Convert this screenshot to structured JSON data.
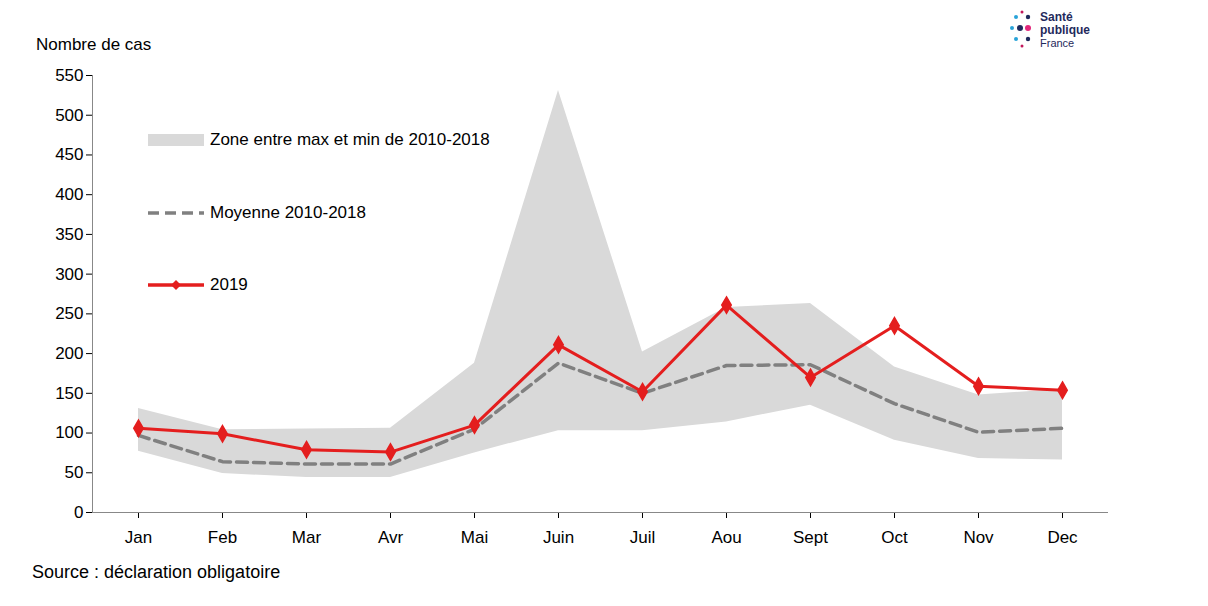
{
  "chart_data": {
    "type": "line",
    "y_label": "Nombre de cas",
    "caption": "Source : déclaration obligatoire",
    "logo": [
      "Santé",
      "publique",
      "France"
    ],
    "categories": [
      "Jan",
      "Feb",
      "Mar",
      "Avr",
      "Mai",
      "Juin",
      "Juil",
      "Aou",
      "Sept",
      "Oct",
      "Nov",
      "Dec"
    ],
    "series": [
      {
        "name": "Zone entre max et min de 2010-2018",
        "type": "area",
        "color": "#d9d9d9",
        "min": [
          77,
          49,
          44,
          44,
          75,
          103,
          103,
          114,
          135,
          91,
          68,
          66
        ],
        "max": [
          131,
          104,
          105,
          106,
          188,
          531,
          202,
          258,
          263,
          183,
          148,
          155
        ]
      },
      {
        "name": "Moyenne 2010-2018",
        "type": "line",
        "color": "#808080",
        "line_style": "dashed",
        "values": [
          97,
          64,
          61,
          61,
          105,
          188,
          150,
          185,
          186,
          137,
          101,
          106
        ]
      },
      {
        "name": "2019",
        "type": "line",
        "color": "#e41e1e",
        "line_style": "solid",
        "marker": "diamond",
        "values": [
          106,
          99,
          79,
          76,
          110,
          211,
          152,
          261,
          170,
          235,
          159,
          154
        ]
      }
    ],
    "ylim": [
      0,
      550
    ],
    "yticks": [
      0,
      50,
      100,
      150,
      200,
      250,
      300,
      350,
      400,
      450,
      500,
      550
    ],
    "grid": false,
    "legend": "top-left"
  }
}
